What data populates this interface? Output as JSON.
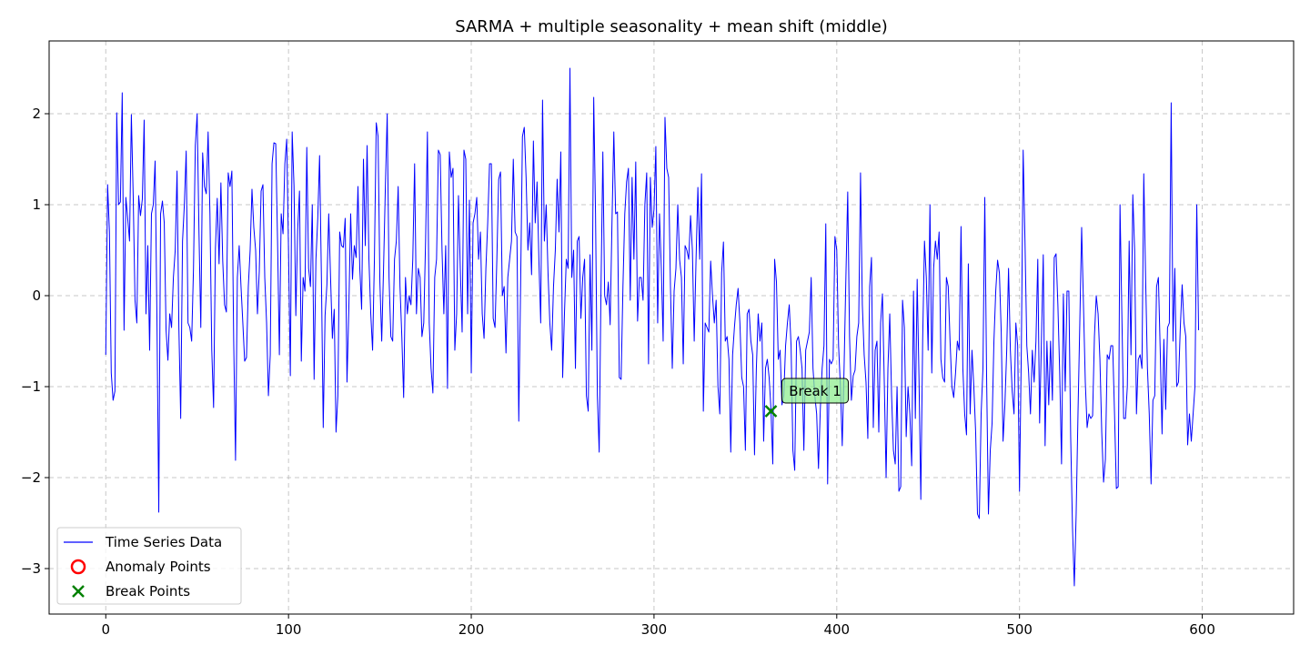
{
  "chart_data": {
    "type": "line",
    "title": "SARMA + multiple seasonality + mean shift (middle)",
    "xlabel": "",
    "ylabel": "",
    "xlim": [
      -31,
      650
    ],
    "ylim": [
      -3.5,
      2.8
    ],
    "x_ticks": [
      0,
      100,
      200,
      300,
      400,
      500,
      600
    ],
    "y_ticks": [
      -3,
      -2,
      -1,
      0,
      1,
      2
    ],
    "y_tick_labels": [
      "−3",
      "−2",
      "−1",
      "0",
      "1",
      "2"
    ],
    "grid": true,
    "legend_position": "lower-left",
    "series": [
      {
        "name": "Time Series Data",
        "color": "#0000ff",
        "x_start": 0,
        "x_step": 1,
        "values": [
          -0.65,
          1.22,
          0.7,
          -0.85,
          -1.15,
          -1.05,
          2.01,
          1.0,
          1.03,
          2.23,
          -0.38,
          1.08,
          0.85,
          0.6,
          1.99,
          1.1,
          -0.05,
          -0.3,
          1.1,
          0.88,
          1.06,
          1.93,
          -0.2,
          0.55,
          -0.6,
          0.9,
          1.0,
          1.48,
          -0.25,
          -2.38,
          0.9,
          1.04,
          0.8,
          -0.38,
          -0.71,
          -0.2,
          -0.35,
          0.2,
          0.5,
          1.37,
          -0.35,
          -1.35,
          0.6,
          1.0,
          1.59,
          -0.3,
          -0.35,
          -0.5,
          0.3,
          1.65,
          2.0,
          0.7,
          -0.35,
          1.57,
          1.2,
          1.12,
          1.8,
          0.9,
          -0.6,
          -1.23,
          0.52,
          1.07,
          0.35,
          1.24,
          0.38,
          -0.1,
          -0.18,
          1.35,
          1.2,
          1.37,
          -0.5,
          -1.81,
          0.2,
          0.55,
          0.1,
          -0.3,
          -0.72,
          -0.68,
          0.1,
          0.5,
          1.17,
          0.75,
          0.5,
          -0.2,
          0.27,
          1.15,
          1.22,
          0.2,
          -0.3,
          -1.1,
          -0.65,
          1.45,
          1.68,
          1.67,
          0.6,
          -0.65,
          0.9,
          0.68,
          1.45,
          1.72,
          0.5,
          -0.88,
          1.8,
          1.21,
          -0.22,
          0.72,
          1.15,
          -0.72,
          0.2,
          0.05,
          1.63,
          0.3,
          0.1,
          1.0,
          -0.92,
          0.4,
          0.85,
          1.54,
          0.2,
          -1.45,
          -0.22,
          0.12,
          0.9,
          0.2,
          -0.47,
          -0.15,
          -1.5,
          -1.1,
          0.7,
          0.55,
          0.53,
          0.85,
          -0.95,
          -0.15,
          0.9,
          0.18,
          0.55,
          0.42,
          1.2,
          0.3,
          -0.15,
          1.5,
          0.55,
          1.65,
          0.4,
          -0.2,
          -0.6,
          0.4,
          1.9,
          1.75,
          0.15,
          -0.5,
          0.3,
          1.2,
          2.0,
          0.2,
          -0.45,
          -0.5,
          0.4,
          0.6,
          1.2,
          0.1,
          -0.45,
          -1.12,
          0.2,
          -0.2,
          0.0,
          -0.1,
          0.4,
          1.45,
          -0.2,
          0.3,
          0.2,
          -0.45,
          -0.3,
          0.6,
          1.8,
          -0.3,
          -0.8,
          -1.07,
          0.2,
          0.4,
          1.6,
          1.55,
          0.5,
          -0.2,
          0.55,
          -1.02,
          1.58,
          1.3,
          1.4,
          -0.6,
          -0.2,
          1.1,
          0.3,
          -0.4,
          1.6,
          1.5,
          -0.2,
          1.05,
          -0.85,
          0.8,
          0.9,
          1.08,
          0.4,
          0.7,
          -0.2,
          -0.47,
          0.3,
          0.8,
          1.45,
          1.45,
          -0.25,
          -0.35,
          0.4,
          1.28,
          1.36,
          0.0,
          0.1,
          -0.63,
          0.2,
          0.4,
          0.6,
          1.5,
          0.7,
          0.65,
          -1.38,
          0.1,
          1.75,
          1.85,
          1.3,
          0.5,
          0.8,
          0.23,
          1.7,
          0.8,
          1.25,
          0.4,
          -0.3,
          2.15,
          0.6,
          1.0,
          0.25,
          -0.3,
          -0.6,
          0.1,
          0.5,
          1.28,
          0.7,
          1.58,
          -0.9,
          -0.2,
          0.4,
          0.3,
          2.5,
          0.2,
          0.5,
          -0.8,
          0.6,
          0.65,
          -0.25,
          0.2,
          0.4,
          -1.1,
          -1.27,
          0.45,
          -0.6,
          2.18,
          0.9,
          -1.1,
          -1.72,
          0.1,
          1.58,
          0.0,
          -0.1,
          0.15,
          -0.32,
          0.8,
          1.8,
          0.9,
          0.92,
          -0.9,
          -0.92,
          0.1,
          0.9,
          1.25,
          1.4,
          -0.05,
          1.3,
          0.4,
          1.47,
          -0.28,
          0.2,
          0.2,
          -0.05,
          1.0,
          1.35,
          -0.75,
          1.3,
          0.75,
          0.95,
          1.64,
          -0.3,
          0.9,
          0.3,
          -0.5,
          1.96,
          1.4,
          1.3,
          0.1,
          -0.8,
          0.05,
          0.3,
          1.0,
          0.4,
          0.2,
          -0.75,
          0.55,
          0.5,
          0.4,
          0.88,
          0.5,
          -0.5,
          0.4,
          1.19,
          0.4,
          1.34,
          -1.27,
          -0.3,
          -0.35,
          -0.4,
          0.38,
          0.0,
          -0.3,
          -0.05,
          -1.0,
          -1.3,
          0.25,
          0.59,
          -0.5,
          -0.45,
          -0.7,
          -1.72,
          -0.65,
          -0.35,
          -0.1,
          0.08,
          -0.3,
          -0.9,
          -1.0,
          -1.7,
          -0.2,
          -0.15,
          -0.5,
          -0.65,
          -1.75,
          -0.8,
          -0.2,
          -0.5,
          -0.3,
          -1.6,
          -0.8,
          -0.7,
          -0.9,
          -1.25,
          -1.85,
          0.4,
          0.15,
          -0.7,
          -0.6,
          -1.2,
          -1.1,
          -0.55,
          -0.3,
          -0.1,
          -0.55,
          -1.7,
          -1.92,
          -0.5,
          -0.45,
          -0.6,
          -0.8,
          -1.7,
          -0.6,
          -0.5,
          -0.4,
          0.2,
          -0.8,
          -1.1,
          -1.3,
          -1.9,
          -1.25,
          -0.8,
          -0.55,
          0.79,
          -2.07,
          -0.7,
          -0.75,
          -0.7,
          0.65,
          0.5,
          -0.55,
          -1.0,
          -1.65,
          -0.8,
          0.2,
          1.14,
          -0.45,
          -1.15,
          -0.88,
          -0.82,
          -0.45,
          -0.3,
          1.35,
          -0.1,
          -0.65,
          -0.95,
          -1.57,
          0.1,
          0.42,
          -1.45,
          -0.6,
          -0.5,
          -1.5,
          -0.3,
          0.02,
          -0.95,
          -2.0,
          -0.8,
          -0.2,
          -1.1,
          -1.7,
          -1.85,
          -1.0,
          -2.15,
          -2.1,
          -0.05,
          -0.35,
          -1.55,
          -1.0,
          -1.3,
          -1.87,
          0.05,
          -1.35,
          0.18,
          -0.9,
          -2.24,
          -0.5,
          0.6,
          0.2,
          -0.6,
          1.0,
          -0.85,
          0.3,
          0.6,
          0.4,
          0.7,
          -0.7,
          -0.9,
          -0.95,
          0.2,
          0.1,
          -0.5,
          -1.0,
          -1.12,
          -0.85,
          -0.5,
          -0.6,
          0.76,
          -0.8,
          -1.3,
          -1.53,
          0.35,
          -1.3,
          -0.6,
          -1.0,
          -1.5,
          -2.4,
          -2.45,
          -1.3,
          -0.8,
          1.08,
          -0.9,
          -2.4,
          -1.7,
          -1.4,
          -0.5,
          0.05,
          0.39,
          0.25,
          -0.4,
          -1.6,
          -1.2,
          -0.6,
          0.3,
          -0.6,
          -1.05,
          -1.3,
          -0.3,
          -0.55,
          -2.15,
          -0.6,
          1.6,
          0.6,
          -0.55,
          -0.85,
          -1.3,
          -0.6,
          -0.95,
          -0.5,
          0.4,
          -1.4,
          -0.5,
          0.45,
          -1.65,
          -0.5,
          -1.2,
          -0.5,
          -1.15,
          0.42,
          0.46,
          -0.1,
          -0.85,
          -1.85,
          0.02,
          -1.05,
          0.05,
          0.05,
          -1.55,
          -2.55,
          -3.19,
          -2.4,
          -1.3,
          -0.3,
          0.75,
          -0.1,
          -0.95,
          -1.45,
          -1.3,
          -1.35,
          -1.32,
          -0.45,
          0.0,
          -0.2,
          -0.7,
          -1.5,
          -2.05,
          -1.8,
          -0.65,
          -0.7,
          -0.55,
          -0.55,
          -1.3,
          -2.12,
          -2.1,
          1.0,
          -0.2,
          -1.35,
          -1.35,
          -1.0,
          0.6,
          -0.65,
          1.11,
          0.5,
          -1.3,
          -0.7,
          -0.65,
          -0.8,
          1.34,
          0.2,
          -0.8,
          -1.3,
          -2.07,
          -1.15,
          -1.1,
          0.1,
          0.2,
          -0.6,
          -1.52,
          -0.48,
          -1.25,
          -0.35,
          -0.3,
          2.12,
          -0.5,
          0.3,
          -1.0,
          -0.95,
          -0.35,
          0.12,
          -0.3,
          -0.45,
          -1.64,
          -1.3,
          -1.6,
          -1.3,
          -1.0,
          1.0,
          -0.38
        ]
      },
      {
        "name": "Anomaly Points",
        "color": "#ff0000",
        "points": []
      },
      {
        "name": "Break Points",
        "color": "#008000",
        "points": [
          {
            "x": 364,
            "y": -1.27
          }
        ]
      }
    ],
    "annotations": [
      {
        "text": "Break 1",
        "x": 364,
        "y": -1.27
      }
    ]
  }
}
